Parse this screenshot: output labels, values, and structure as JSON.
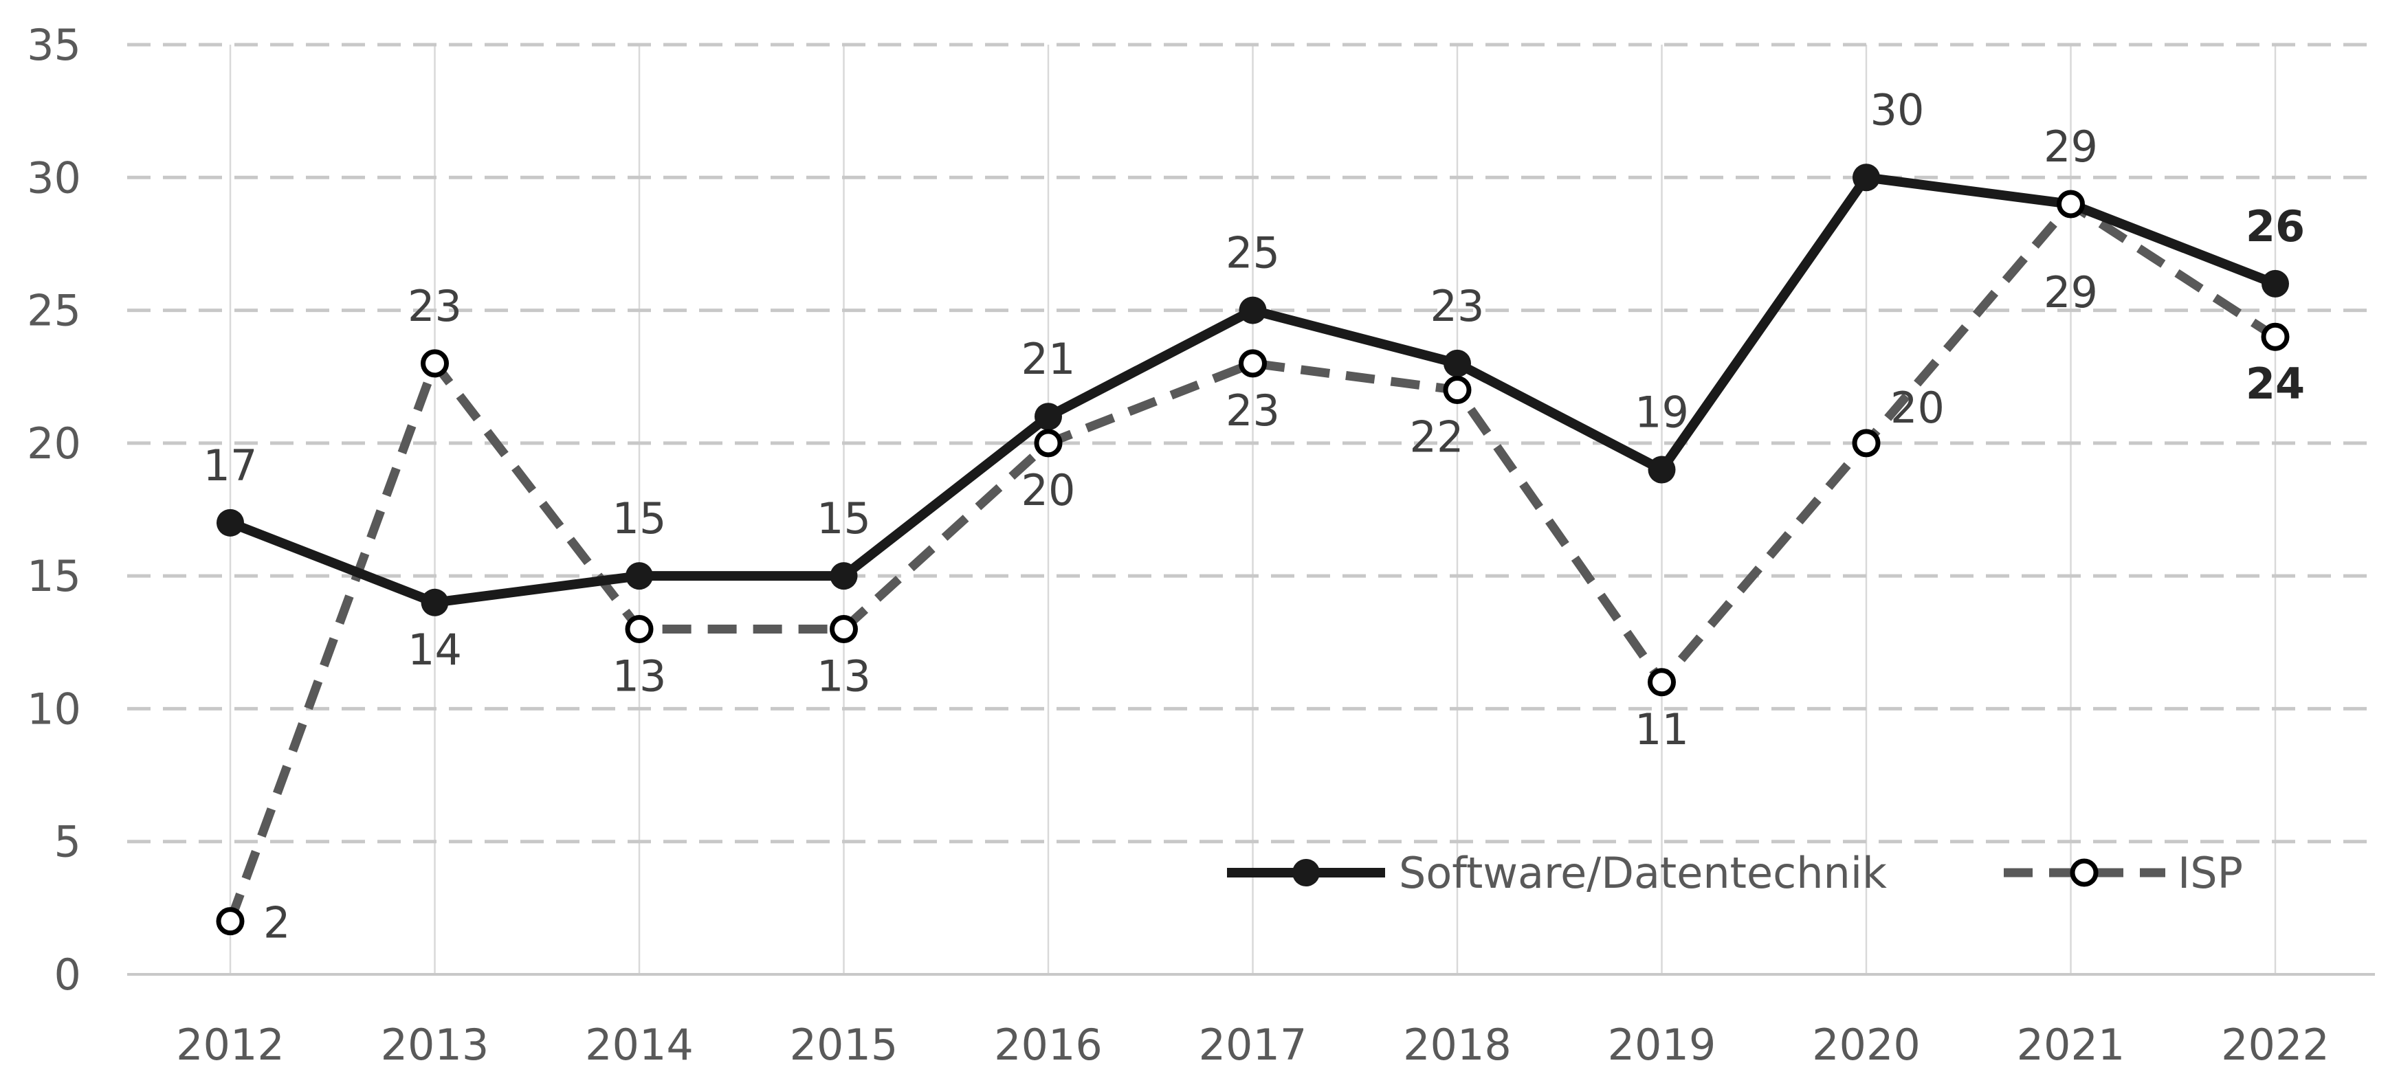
{
  "chart_data": {
    "type": "line",
    "x": [
      "2012",
      "2013",
      "2014",
      "2015",
      "2016",
      "2017",
      "2018",
      "2019",
      "2020",
      "2021",
      "2022"
    ],
    "ylim": [
      0,
      35
    ],
    "yticks": [
      0,
      5,
      10,
      15,
      20,
      25,
      30,
      35
    ],
    "grid": true,
    "legend_position": "bottom-right",
    "series": [
      {
        "name": "Software/Datentechnik",
        "values": [
          17,
          14,
          15,
          15,
          21,
          25,
          23,
          19,
          30,
          29,
          26
        ],
        "color": "#1a1a1a",
        "style": "solid",
        "marker": "filled-circle"
      },
      {
        "name": "ISP",
        "values": [
          2,
          23,
          13,
          13,
          20,
          23,
          22,
          11,
          20,
          29,
          24
        ],
        "color": "#595959",
        "style": "dashed",
        "marker": "hollow-circle"
      }
    ]
  }
}
